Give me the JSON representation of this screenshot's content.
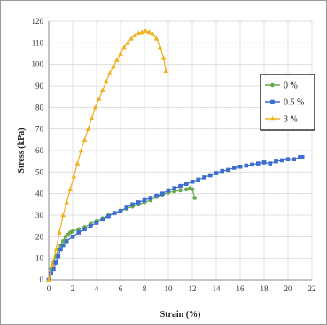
{
  "chart_data": {
    "type": "scatter",
    "title": "",
    "xlabel": "Strain (%)",
    "ylabel": "Stress (kPa)",
    "xlim": [
      0,
      22
    ],
    "ylim": [
      0,
      120
    ],
    "xticks": [
      "0",
      "2",
      "4",
      "6",
      "8",
      "10",
      "12",
      "14",
      "16",
      "18",
      "20",
      "22"
    ],
    "yticks": [
      "0",
      "10",
      "20",
      "30",
      "40",
      "50",
      "60",
      "70",
      "80",
      "90",
      "100",
      "110",
      "120"
    ],
    "grid": true,
    "legend_position": "right",
    "series": [
      {
        "name": "0 %",
        "color": "#6aa84f",
        "marker": "circle",
        "x": [
          0,
          0.2,
          0.4,
          0.6,
          0.8,
          1.0,
          1.2,
          1.4,
          1.6,
          1.8,
          2.0,
          2.5,
          3.0,
          3.5,
          4.0,
          4.5,
          5.0,
          5.5,
          6.0,
          6.5,
          7.0,
          7.5,
          8.0,
          8.5,
          9.0,
          9.5,
          10.0,
          10.5,
          11.0,
          11.5,
          11.8,
          12.0,
          12.2
        ],
        "y": [
          0,
          5,
          8,
          11,
          14,
          16,
          18,
          20,
          21,
          22,
          22.5,
          23.5,
          24.5,
          26,
          27.5,
          28.5,
          30,
          31,
          32,
          33,
          34,
          35,
          36,
          37,
          38.5,
          39.5,
          40.5,
          41,
          41.5,
          42,
          42.5,
          42,
          38
        ]
      },
      {
        "name": "0.5 %",
        "color": "#3d6dd1",
        "marker": "square",
        "x": [
          0,
          0.2,
          0.4,
          0.6,
          0.8,
          1.0,
          1.2,
          1.5,
          2.0,
          2.5,
          3.0,
          3.5,
          4.0,
          4.5,
          5.0,
          5.5,
          6.0,
          6.5,
          7.0,
          7.5,
          8.0,
          8.5,
          9.0,
          9.5,
          10.0,
          10.5,
          11.0,
          11.5,
          12.0,
          12.5,
          13.0,
          13.5,
          14.0,
          14.5,
          15.0,
          15.5,
          16.0,
          16.5,
          17.0,
          17.5,
          18.0,
          18.5,
          19.0,
          19.5,
          20.0,
          20.5,
          21.0,
          21.2
        ],
        "y": [
          0,
          3,
          5,
          8,
          11,
          14,
          16,
          18,
          20,
          22,
          23.5,
          25,
          26.5,
          28,
          29.5,
          31,
          32,
          33.5,
          35,
          36,
          37,
          38,
          39,
          40,
          41.5,
          42.5,
          43.5,
          44.5,
          45.5,
          46.5,
          47.5,
          48.5,
          49.5,
          50.5,
          51,
          52,
          52.5,
          53,
          53.5,
          54,
          54.5,
          54,
          55,
          55.5,
          56,
          56,
          57,
          57
        ]
      },
      {
        "name": "3 %",
        "color": "#f2b01e",
        "marker": "triangle",
        "x": [
          0,
          0.3,
          0.6,
          0.9,
          1.2,
          1.5,
          1.8,
          2.1,
          2.4,
          2.7,
          3.0,
          3.3,
          3.6,
          3.9,
          4.2,
          4.5,
          4.8,
          5.1,
          5.4,
          5.7,
          6.0,
          6.3,
          6.6,
          6.9,
          7.2,
          7.5,
          7.8,
          8.1,
          8.4,
          8.7,
          9.0,
          9.3,
          9.6,
          9.8
        ],
        "y": [
          0,
          7,
          14,
          22,
          30,
          36,
          42,
          48,
          54,
          60,
          65,
          70,
          75,
          80,
          84,
          88,
          92,
          96,
          99,
          102,
          105,
          108,
          110,
          112,
          113.5,
          114.5,
          115,
          115.5,
          115,
          114,
          112,
          108,
          103,
          97
        ]
      }
    ]
  }
}
